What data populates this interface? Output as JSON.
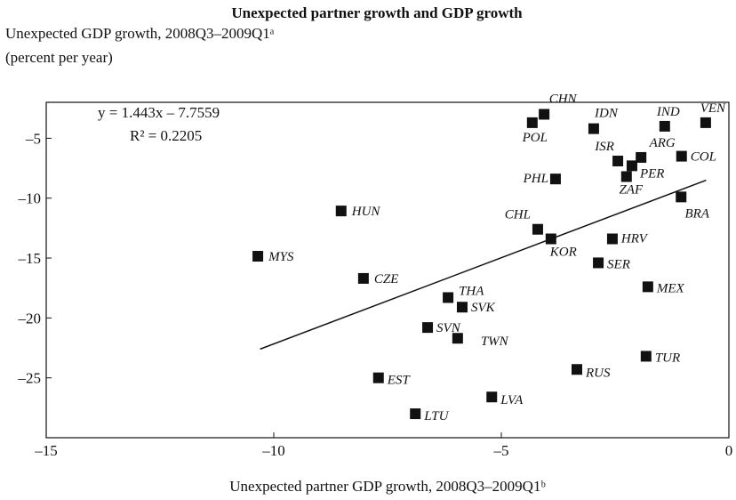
{
  "chart_data": {
    "type": "scatter",
    "title": "Unexpected partner growth and GDP growth",
    "ylabel": [
      "Unexpected GDP growth, 2008Q3–2009Q1ᵃ",
      "(percent per year)"
    ],
    "xlabel": "Unexpected partner GDP growth, 2008Q3–2009Q1ᵇ",
    "annotations": [
      "y = 1.443x – 7.7559",
      "R² = 0.2205"
    ],
    "xlim": [
      -15,
      0
    ],
    "ylim": [
      -30,
      -2
    ],
    "xticks": [
      {
        "value": -15,
        "label": "–15"
      },
      {
        "value": -10,
        "label": "–10"
      },
      {
        "value": -5,
        "label": "–5"
      },
      {
        "value": 0,
        "label": "0"
      }
    ],
    "yticks": [
      {
        "value": -5,
        "label": "–5"
      },
      {
        "value": -10,
        "label": "–10"
      },
      {
        "value": -15,
        "label": "–15"
      },
      {
        "value": -20,
        "label": "–20"
      },
      {
        "value": -25,
        "label": "–25"
      }
    ],
    "color": "#111111",
    "labels": [
      "MYS",
      "HUN",
      "CZE",
      "EST",
      "LTU",
      "SVN",
      "THA",
      "SVK",
      "TWN",
      "LVA",
      "CHL",
      "KOR",
      "PHL",
      "POL",
      "CHN",
      "IDN",
      "RUS",
      "SER",
      "HRV",
      "ISR",
      "ARG",
      "PER",
      "ZAF",
      "IND",
      "VEN",
      "COL",
      "BRA",
      "MEX",
      "TUR"
    ],
    "x": [
      -10.35,
      -8.52,
      -8.03,
      -7.7,
      -6.89,
      -6.62,
      -6.17,
      -5.86,
      -5.96,
      -5.21,
      -4.2,
      -3.91,
      -3.81,
      -4.32,
      -4.06,
      -2.97,
      -3.34,
      -2.87,
      -2.56,
      -2.44,
      -1.93,
      -2.13,
      -2.25,
      -1.41,
      -0.51,
      -1.04,
      -1.05,
      -1.78,
      -1.82
    ],
    "values": [
      -14.85,
      -11.07,
      -16.7,
      -25.0,
      -28.0,
      -20.8,
      -18.3,
      -19.1,
      -21.7,
      -26.6,
      -12.6,
      -13.4,
      -8.4,
      -3.7,
      -3.0,
      -4.2,
      -24.3,
      -15.4,
      -13.4,
      -6.9,
      -6.6,
      -7.3,
      -8.2,
      -4.0,
      -3.7,
      -6.5,
      -9.9,
      -17.4,
      -23.2
    ],
    "trendline": {
      "x": [
        -10.3,
        -0.5
      ],
      "values": [
        -22.6,
        -8.5
      ]
    }
  }
}
